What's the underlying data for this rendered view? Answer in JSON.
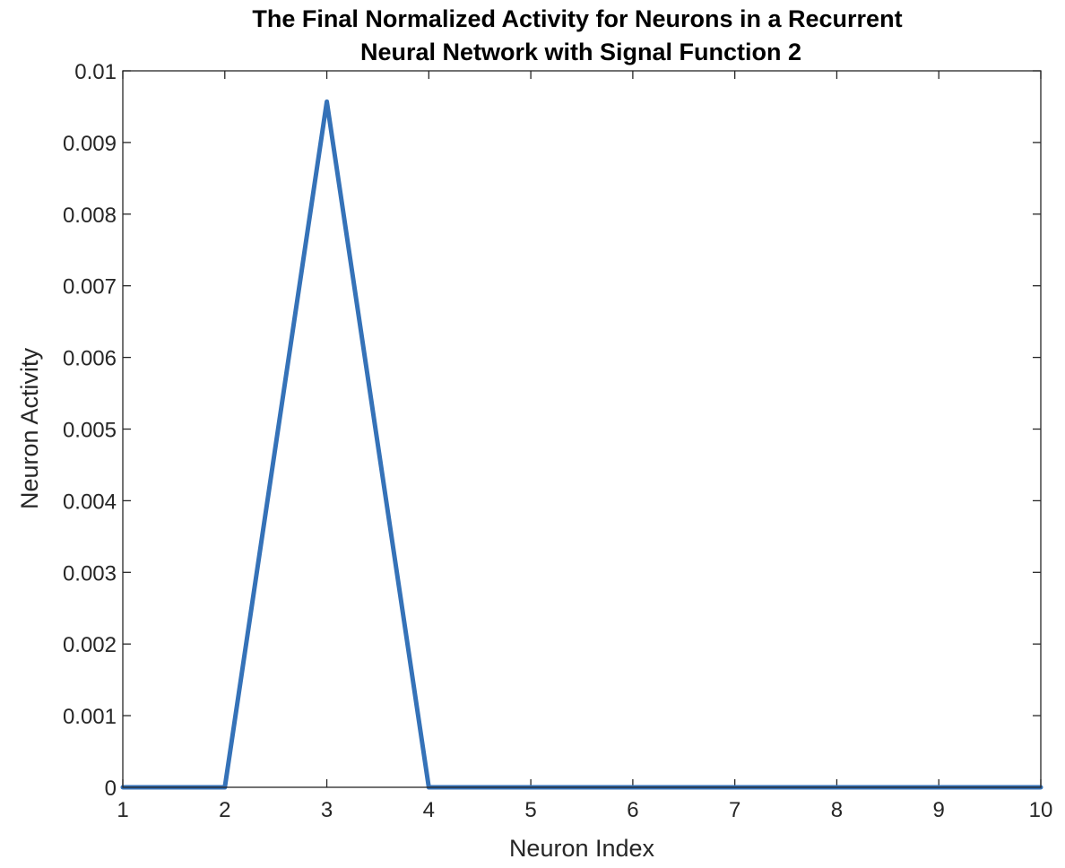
{
  "chart_data": {
    "type": "line",
    "title": "The Final Normalized Activity for Neurons in a Recurrent Neural Network with Signal Function 2",
    "title_lines": [
      "The Final Normalized Activity for Neurons in a Recurrent",
      "Neural Network with Signal Function 2"
    ],
    "xlabel": "Neuron Index",
    "ylabel": "Neuron Activity",
    "xlim": [
      1,
      10
    ],
    "ylim": [
      0,
      0.01
    ],
    "x_ticks": [
      1,
      2,
      3,
      4,
      5,
      6,
      7,
      8,
      9,
      10
    ],
    "x_tick_labels": [
      "1",
      "2",
      "3",
      "4",
      "5",
      "6",
      "7",
      "8",
      "9",
      "10"
    ],
    "y_ticks": [
      0,
      0.001,
      0.002,
      0.003,
      0.004,
      0.005,
      0.006,
      0.007,
      0.008,
      0.009,
      0.01
    ],
    "y_tick_labels": [
      "0",
      "0.001",
      "0.002",
      "0.003",
      "0.004",
      "0.005",
      "0.006",
      "0.007",
      "0.008",
      "0.009",
      "0.01"
    ],
    "grid": false,
    "legend": "none",
    "series": [
      {
        "x": [
          1,
          2,
          3,
          4,
          5,
          6,
          7,
          8,
          9,
          10
        ],
        "values": [
          0,
          0,
          0.00957,
          0,
          0,
          0,
          0,
          0,
          0,
          0
        ],
        "color": "#3572B8"
      }
    ],
    "colors": {
      "line": "#3572B8",
      "axes": "#262626",
      "title": "#000000"
    }
  }
}
